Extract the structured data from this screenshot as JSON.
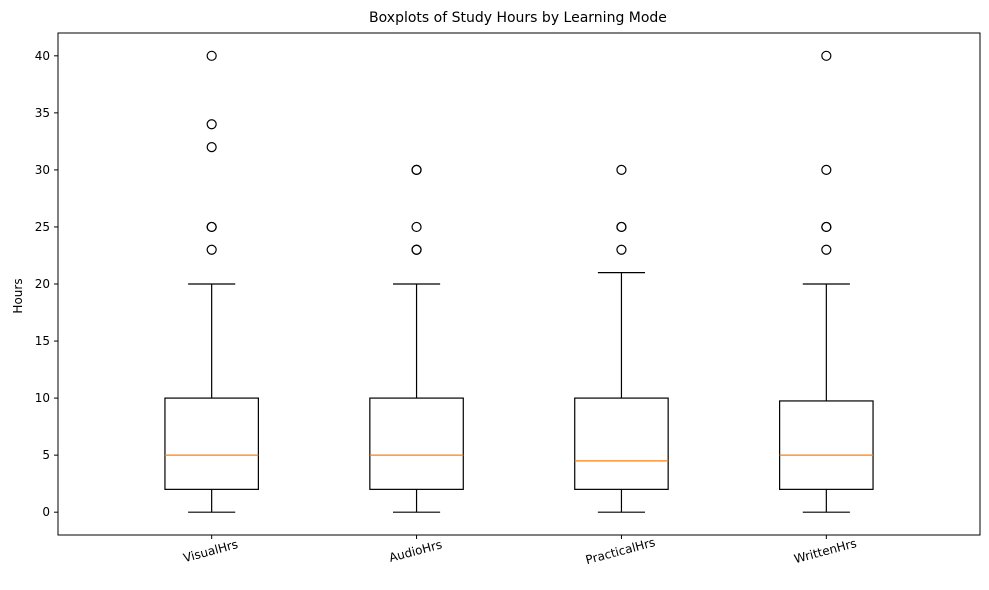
{
  "chart_data": {
    "type": "boxplot",
    "title": "Boxplots of Study Hours by Learning Mode",
    "xlabel": "",
    "ylabel": "Hours",
    "ylim": [
      -2,
      42
    ],
    "yticks": [
      0,
      5,
      10,
      15,
      20,
      25,
      30,
      35,
      40
    ],
    "grid": false,
    "colors": {
      "box": "#000000",
      "median": "#ff7f0e",
      "flier": "#000000"
    },
    "categories": [
      "VisualHrs",
      "AudioHrs",
      "PracticalHrs",
      "WrittenHrs"
    ],
    "series": [
      {
        "whisker_low": 0,
        "q1": 2,
        "median": 5,
        "q3": 10,
        "whisker_high": 20,
        "outliers": [
          23,
          25,
          25,
          32,
          34,
          40
        ]
      },
      {
        "whisker_low": 0,
        "q1": 2,
        "median": 5,
        "q3": 10,
        "whisker_high": 20,
        "outliers": [
          23,
          23,
          25,
          30,
          30
        ]
      },
      {
        "whisker_low": 0,
        "q1": 2,
        "median": 4.5,
        "q3": 10,
        "whisker_high": 21,
        "outliers": [
          23,
          25,
          25,
          30
        ]
      },
      {
        "whisker_low": 0,
        "q1": 2,
        "median": 5,
        "q3": 9.75,
        "whisker_high": 20,
        "outliers": [
          23,
          25,
          25,
          30,
          40
        ]
      }
    ]
  }
}
